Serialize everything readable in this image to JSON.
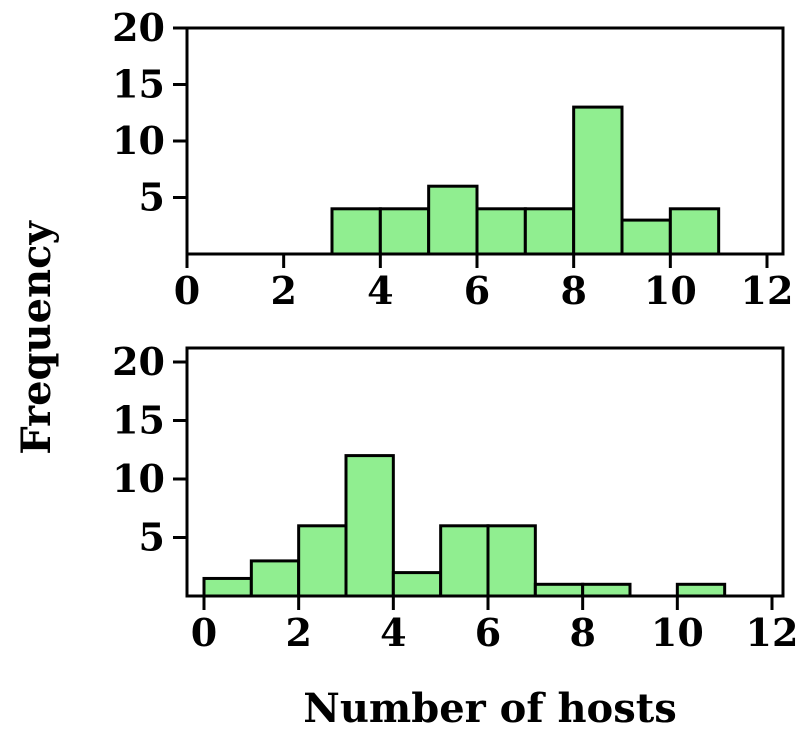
{
  "chart_data": [
    {
      "type": "bar",
      "x": [
        3.5,
        4.5,
        5.5,
        6.5,
        7.5,
        8.5,
        9.5,
        10.5
      ],
      "values": [
        4,
        4,
        6,
        4,
        4,
        13,
        3,
        4
      ],
      "bin_width": 1,
      "xlim": [
        0,
        12
      ],
      "ylim": [
        0,
        20
      ],
      "xticks": [
        0,
        2,
        4,
        6,
        8,
        10,
        12
      ],
      "yticks": [
        5,
        10,
        15,
        20
      ],
      "bar_color": "#90EE90",
      "grid": false
    },
    {
      "type": "bar",
      "x": [
        0.5,
        1.5,
        2.5,
        3.5,
        4.5,
        5.5,
        6.5,
        7.5,
        8.5,
        10.5
      ],
      "values": [
        1.5,
        3,
        6,
        12,
        2,
        6,
        6,
        1,
        1,
        1
      ],
      "bin_width": 1,
      "xlim": [
        0,
        12
      ],
      "ylim": [
        0,
        20
      ],
      "xticks": [
        0,
        2,
        4,
        6,
        8,
        10,
        12
      ],
      "yticks": [
        5,
        10,
        15,
        20
      ],
      "bar_color": "#90EE90",
      "grid": false
    }
  ],
  "ylabel": "Frequency",
  "xlabel": "Number of hosts"
}
